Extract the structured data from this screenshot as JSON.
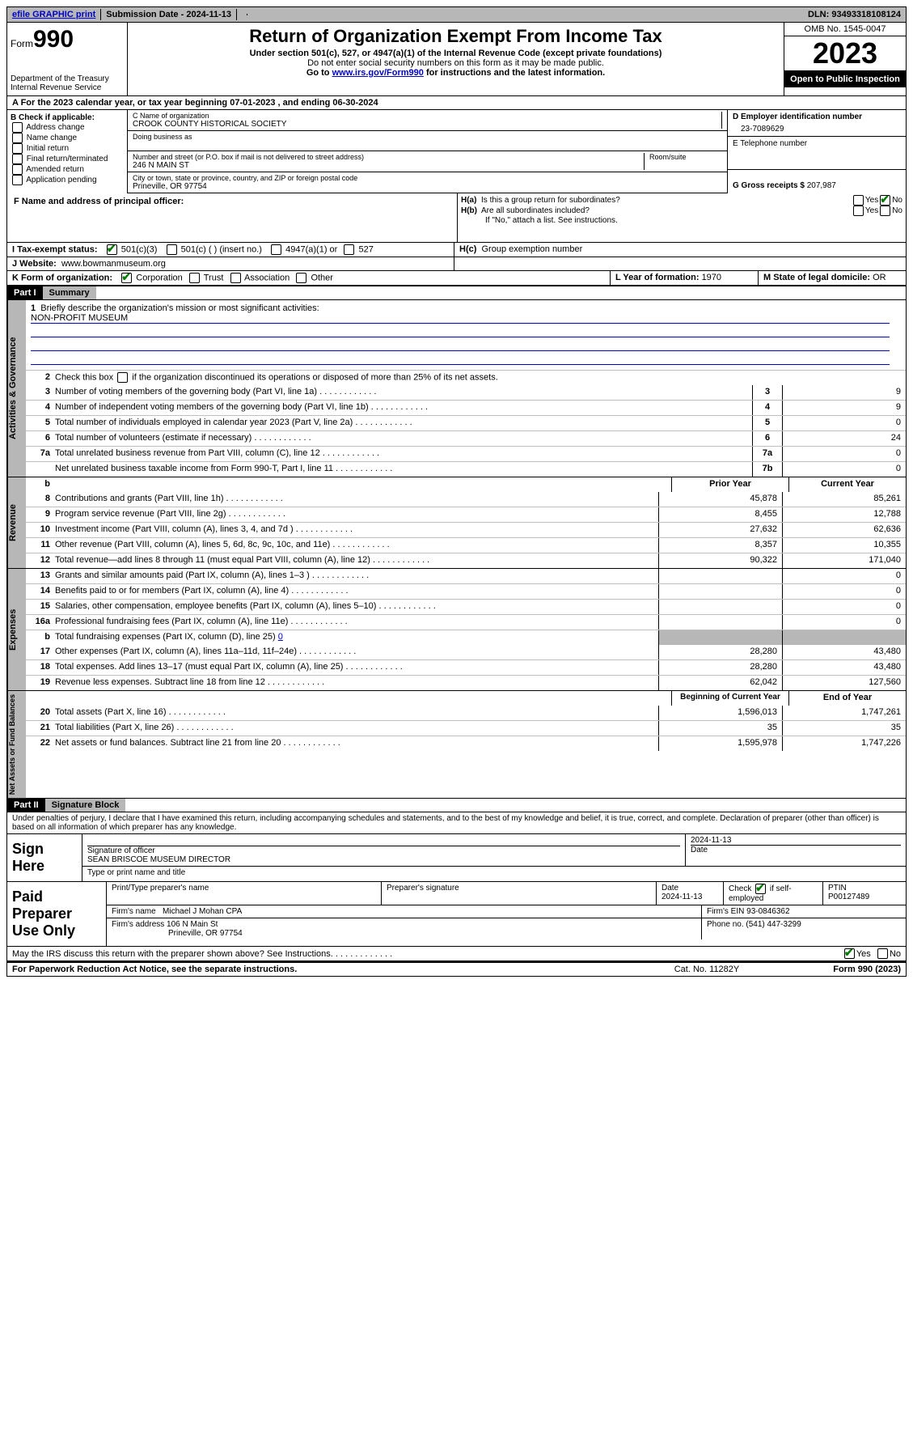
{
  "topbar": {
    "efile": "efile GRAPHIC print",
    "sub_label": "Submission Date - ",
    "sub_date": "2024-11-13",
    "dln_label": "DLN: ",
    "dln": "93493318108124"
  },
  "header": {
    "form_label": "Form",
    "form_num": "990",
    "dept": "Department of the Treasury",
    "irs": "Internal Revenue Service",
    "title": "Return of Organization Exempt From Income Tax",
    "sub1": "Under section 501(c), 527, or 4947(a)(1) of the Internal Revenue Code (except private foundations)",
    "sub2": "Do not enter social security numbers on this form as it may be made public.",
    "sub3_a": "Go to ",
    "sub3_b": "www.irs.gov/Form990",
    "sub3_c": " for instructions and the latest information.",
    "omb": "OMB No. 1545-0047",
    "year": "2023",
    "inspect": "Open to Public Inspection"
  },
  "rowA": {
    "prefix": "A For the 2023 calendar year, or tax year beginning ",
    "begin": "07-01-2023",
    "mid": "   , and ending ",
    "end": "06-30-2024"
  },
  "colB": {
    "title": "B Check if applicable:",
    "items": [
      "Address change",
      "Name change",
      "Initial return",
      "Final return/terminated",
      "Amended return",
      "Application pending"
    ]
  },
  "boxC": {
    "name_lbl": "C Name of organization",
    "name": "CROOK COUNTY HISTORICAL SOCIETY",
    "dba_lbl": "Doing business as",
    "street_lbl": "Number and street (or P.O. box if mail is not delivered to street address)",
    "street": "246 N MAIN ST",
    "room_lbl": "Room/suite",
    "city_lbl": "City or town, state or province, country, and ZIP or foreign postal code",
    "city": "Prineville, OR  97754",
    "f_lbl": "F  Name and address of principal officer:"
  },
  "right": {
    "d_lbl": "D Employer identification number",
    "ein": "23-7089629",
    "e_lbl": "E Telephone number",
    "g_lbl": "G Gross receipts $ ",
    "g_val": "207,987",
    "ha": "H(a)  Is this a group return for subordinates?",
    "hb": "H(b)  Are all subordinates included?",
    "hb_note": "If \"No,\" attach a list. See instructions.",
    "hc": "H(c)  Group exemption number",
    "yes": "Yes",
    "no": "No"
  },
  "status": {
    "i_lbl": "I   Tax-exempt status:",
    "opts": [
      "501(c)(3)",
      "501(c) (  ) (insert no.)",
      "4947(a)(1) or",
      "527"
    ],
    "j_lbl": "J   Website:",
    "website": "www.bowmanmuseum.org",
    "k_lbl": "K Form of organization:",
    "k_opts": [
      "Corporation",
      "Trust",
      "Association",
      "Other"
    ],
    "l_lbl": "L Year of formation: ",
    "l_val": "1970",
    "m_lbl": "M State of legal domicile: ",
    "m_val": "OR"
  },
  "partI": {
    "label": "Part I",
    "title": "Summary",
    "mission_lbl": "1  Briefly describe the organization's mission or most significant activities:",
    "mission": "NON-PROFIT MUSEUM"
  },
  "gov": {
    "label": "Activities & Governance",
    "l2": "Check this box        if the organization discontinued its operations or disposed of more than 25% of its net assets.",
    "rows": [
      {
        "n": "3",
        "d": "Number of voting members of the governing body (Part VI, line 1a)",
        "c": "3",
        "v": "9"
      },
      {
        "n": "4",
        "d": "Number of independent voting members of the governing body (Part VI, line 1b)",
        "c": "4",
        "v": "9"
      },
      {
        "n": "5",
        "d": "Total number of individuals employed in calendar year 2023 (Part V, line 2a)",
        "c": "5",
        "v": "0"
      },
      {
        "n": "6",
        "d": "Total number of volunteers (estimate if necessary)",
        "c": "6",
        "v": "24"
      },
      {
        "n": "7a",
        "d": "Total unrelated business revenue from Part VIII, column (C), line 12",
        "c": "7a",
        "v": "0"
      },
      {
        "n": "",
        "d": "Net unrelated business taxable income from Form 990-T, Part I, line 11",
        "c": "7b",
        "v": "0"
      }
    ]
  },
  "rev": {
    "label": "Revenue",
    "hdr_prior": "Prior Year",
    "hdr_curr": "Current Year",
    "rows": [
      {
        "n": "8",
        "d": "Contributions and grants (Part VIII, line 1h)",
        "p": "45,878",
        "c": "85,261"
      },
      {
        "n": "9",
        "d": "Program service revenue (Part VIII, line 2g)",
        "p": "8,455",
        "c": "12,788"
      },
      {
        "n": "10",
        "d": "Investment income (Part VIII, column (A), lines 3, 4, and 7d )",
        "p": "27,632",
        "c": "62,636"
      },
      {
        "n": "11",
        "d": "Other revenue (Part VIII, column (A), lines 5, 6d, 8c, 9c, 10c, and 11e)",
        "p": "8,357",
        "c": "10,355"
      },
      {
        "n": "12",
        "d": "Total revenue—add lines 8 through 11 (must equal Part VIII, column (A), line 12)",
        "p": "90,322",
        "c": "171,040"
      }
    ]
  },
  "exp": {
    "label": "Expenses",
    "rows": [
      {
        "n": "13",
        "d": "Grants and similar amounts paid (Part IX, column (A), lines 1–3 )",
        "p": "",
        "c": "0"
      },
      {
        "n": "14",
        "d": "Benefits paid to or for members (Part IX, column (A), line 4)",
        "p": "",
        "c": "0"
      },
      {
        "n": "15",
        "d": "Salaries, other compensation, employee benefits (Part IX, column (A), lines 5–10)",
        "p": "",
        "c": "0"
      },
      {
        "n": "16a",
        "d": "Professional fundraising fees (Part IX, column (A), line 11e)",
        "p": "",
        "c": "0"
      }
    ],
    "l16b_a": "Total fundraising expenses (Part IX, column (D), line 25) ",
    "l16b_v": "0",
    "rows2": [
      {
        "n": "17",
        "d": "Other expenses (Part IX, column (A), lines 11a–11d, 11f–24e)",
        "p": "28,280",
        "c": "43,480"
      },
      {
        "n": "18",
        "d": "Total expenses. Add lines 13–17 (must equal Part IX, column (A), line 25)",
        "p": "28,280",
        "c": "43,480"
      },
      {
        "n": "19",
        "d": "Revenue less expenses. Subtract line 18 from line 12",
        "p": "62,042",
        "c": "127,560"
      }
    ]
  },
  "net": {
    "label": "Net Assets or Fund Balances",
    "hdr_b": "Beginning of Current Year",
    "hdr_e": "End of Year",
    "rows": [
      {
        "n": "20",
        "d": "Total assets (Part X, line 16)",
        "p": "1,596,013",
        "c": "1,747,261"
      },
      {
        "n": "21",
        "d": "Total liabilities (Part X, line 26)",
        "p": "35",
        "c": "35"
      },
      {
        "n": "22",
        "d": "Net assets or fund balances. Subtract line 21 from line 20",
        "p": "1,595,978",
        "c": "1,747,226"
      }
    ]
  },
  "partII": {
    "label": "Part II",
    "title": "Signature Block",
    "decl": "Under penalties of perjury, I declare that I have examined this return, including accompanying schedules and statements, and to the best of my knowledge and belief, it is true, correct, and complete. Declaration of preparer (other than officer) is based on all information of which preparer has any knowledge."
  },
  "sign": {
    "here": "Sign Here",
    "sig_lbl": "Signature of officer",
    "officer": "SEAN BRISCOE  MUSEUM DIRECTOR",
    "type_lbl": "Type or print name and title",
    "date_lbl": "Date",
    "date": "2024-11-13"
  },
  "prep": {
    "label": "Paid Preparer Use Only",
    "pname_lbl": "Print/Type preparer's name",
    "psig_lbl": "Preparer's signature",
    "pdate_lbl": "Date",
    "pdate": "2024-11-13",
    "check_lbl": "Check         if self-employed",
    "ptin_lbl": "PTIN",
    "ptin": "P00127489",
    "firm_lbl": "Firm's name",
    "firm": "Michael J Mohan CPA",
    "fein_lbl": "Firm's EIN",
    "fein": "93-0846362",
    "addr_lbl": "Firm's address",
    "addr1": "106 N Main St",
    "addr2": "Prineville, OR  97754",
    "phone_lbl": "Phone no. ",
    "phone": "(541) 447-3299",
    "discuss": "May the IRS discuss this return with the preparer shown above? See Instructions."
  },
  "footer": {
    "pra": "For Paperwork Reduction Act Notice, see the separate instructions.",
    "cat": "Cat. No. 11282Y",
    "form": "Form 990 (2023)"
  }
}
